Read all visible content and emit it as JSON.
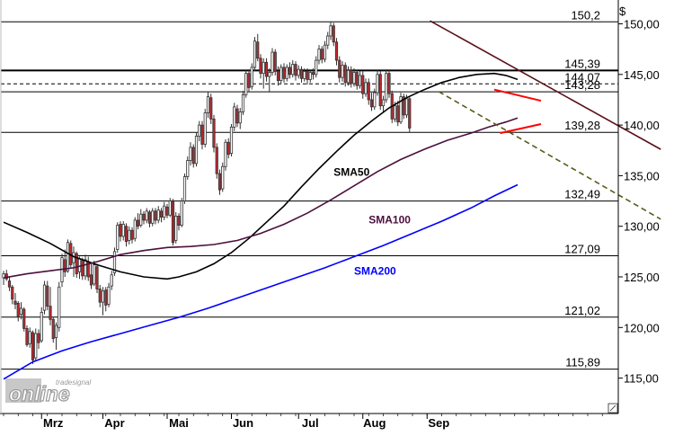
{
  "chart_data": {
    "type": "candlestick",
    "currency_label": "$",
    "y_ticks": [
      {
        "value": 150,
        "label": "150,00"
      },
      {
        "value": 145,
        "label": "145,00"
      },
      {
        "value": 140,
        "label": "140,00"
      },
      {
        "value": 135,
        "label": "135,00"
      },
      {
        "value": 130,
        "label": "130,00"
      },
      {
        "value": 125,
        "label": "125,00"
      },
      {
        "value": 120,
        "label": "120,00"
      },
      {
        "value": 115,
        "label": "115,00"
      }
    ],
    "ylim": [
      111.5,
      152.0
    ],
    "x_months": [
      "Mrz",
      "Apr",
      "Mai",
      "Jun",
      "Jul",
      "Aug",
      "Sep"
    ],
    "horizontal_levels": [
      {
        "value": 150.2,
        "label": "150,2",
        "style": "solid"
      },
      {
        "value": 145.39,
        "label": "145,39",
        "style": "solid-bold"
      },
      {
        "value": 144.07,
        "label": "144,07",
        "style": "dashed"
      },
      {
        "value": 143.28,
        "label": "143,28",
        "style": "solid"
      },
      {
        "value": 139.28,
        "label": "139,28",
        "style": "solid"
      },
      {
        "value": 132.49,
        "label": "132,49",
        "style": "solid"
      },
      {
        "value": 127.09,
        "label": "127,09",
        "style": "solid"
      },
      {
        "value": 121.02,
        "label": "121,02",
        "style": "solid"
      },
      {
        "value": 115.89,
        "label": "115,89",
        "style": "solid"
      }
    ],
    "moving_averages": [
      {
        "name": "SMA50",
        "color": "#000000",
        "points": [
          [
            0,
            130.4
          ],
          [
            8,
            129.4
          ],
          [
            16,
            128.3
          ],
          [
            24,
            127.0
          ],
          [
            32,
            126.2
          ],
          [
            40,
            125.5
          ],
          [
            48,
            125.0
          ],
          [
            56,
            124.8
          ],
          [
            60,
            125.0
          ],
          [
            66,
            125.5
          ],
          [
            72,
            126.3
          ],
          [
            78,
            127.4
          ],
          [
            84,
            128.8
          ],
          [
            90,
            130.4
          ],
          [
            96,
            132.0
          ],
          [
            102,
            133.9
          ],
          [
            108,
            135.7
          ],
          [
            114,
            137.4
          ],
          [
            120,
            139.0
          ],
          [
            126,
            140.4
          ],
          [
            132,
            141.7
          ],
          [
            138,
            142.7
          ],
          [
            144,
            143.5
          ],
          [
            150,
            144.2
          ],
          [
            156,
            144.7
          ],
          [
            162,
            145.0
          ],
          [
            168,
            145.1
          ],
          [
            172,
            144.9
          ],
          [
            176,
            144.5
          ]
        ]
      },
      {
        "name": "SMA100",
        "color": "#4b0f3d",
        "points": [
          [
            0,
            124.9
          ],
          [
            8,
            125.3
          ],
          [
            16,
            125.6
          ],
          [
            24,
            125.9
          ],
          [
            32,
            126.5
          ],
          [
            40,
            127.2
          ],
          [
            48,
            127.6
          ],
          [
            56,
            127.9
          ],
          [
            64,
            128.0
          ],
          [
            72,
            128.2
          ],
          [
            80,
            128.6
          ],
          [
            88,
            129.3
          ],
          [
            96,
            130.2
          ],
          [
            104,
            131.3
          ],
          [
            112,
            132.6
          ],
          [
            120,
            134.0
          ],
          [
            128,
            135.4
          ],
          [
            136,
            136.6
          ],
          [
            144,
            137.6
          ],
          [
            152,
            138.5
          ],
          [
            160,
            139.2
          ],
          [
            166,
            139.8
          ],
          [
            172,
            140.3
          ],
          [
            176,
            140.7
          ]
        ]
      },
      {
        "name": "SMA200",
        "color": "#0000ff",
        "points": [
          [
            0,
            114.9
          ],
          [
            10,
            116.6
          ],
          [
            20,
            117.7
          ],
          [
            30,
            118.6
          ],
          [
            40,
            119.4
          ],
          [
            50,
            120.2
          ],
          [
            60,
            121.0
          ],
          [
            70,
            121.9
          ],
          [
            80,
            122.9
          ],
          [
            90,
            123.9
          ],
          [
            100,
            124.9
          ],
          [
            110,
            125.9
          ],
          [
            120,
            127.0
          ],
          [
            130,
            128.1
          ],
          [
            140,
            129.3
          ],
          [
            150,
            130.5
          ],
          [
            160,
            131.8
          ],
          [
            168,
            133.0
          ],
          [
            176,
            134.1
          ]
        ]
      }
    ],
    "trendlines": [
      {
        "kind": "downtrend-solid",
        "color": "#5a1018",
        "from": [
          146,
          150.3
        ],
        "to": [
          225,
          137.6
        ]
      },
      {
        "kind": "downtrend-dashed",
        "color": "#5a5a1a",
        "from": [
          149,
          143.3
        ],
        "to": [
          225,
          130.7
        ]
      },
      {
        "kind": "wedge-upper",
        "color": "#ff0000",
        "from": [
          168,
          143.5
        ],
        "to": [
          184,
          142.4
        ]
      },
      {
        "kind": "wedge-lower",
        "color": "#ff0000",
        "from": [
          170,
          139.2
        ],
        "to": [
          184,
          140.1
        ]
      }
    ],
    "candles": [
      [
        0,
        124.9,
        125.6,
        124.2,
        125.3
      ],
      [
        1,
        125.3,
        125.7,
        124.6,
        124.8
      ],
      [
        2,
        124.6,
        125.0,
        123.6,
        124.0
      ],
      [
        3,
        124.0,
        124.2,
        122.3,
        122.8
      ],
      [
        4,
        122.6,
        123.4,
        121.8,
        122.3
      ],
      [
        5,
        122.4,
        122.6,
        120.6,
        121.1
      ],
      [
        6,
        121.3,
        122.5,
        120.8,
        121.9
      ],
      [
        7,
        121.8,
        122.0,
        119.6,
        119.9
      ],
      [
        8,
        119.9,
        120.2,
        118.1,
        118.3
      ],
      [
        9,
        118.4,
        120.0,
        118.0,
        119.6
      ],
      [
        10,
        119.5,
        119.7,
        116.4,
        116.8
      ],
      [
        11,
        117.0,
        119.9,
        116.7,
        119.4
      ],
      [
        12,
        119.4,
        119.8,
        117.9,
        118.5
      ],
      [
        13,
        118.7,
        122.0,
        118.5,
        121.5
      ],
      [
        14,
        121.7,
        124.6,
        121.3,
        124.2
      ],
      [
        15,
        124.1,
        124.6,
        121.7,
        122.1
      ],
      [
        16,
        122.1,
        124.0,
        120.2,
        120.8
      ],
      [
        17,
        120.8,
        121.0,
        118.5,
        118.9
      ],
      [
        18,
        119.0,
        120.5,
        117.8,
        120.2
      ],
      [
        19,
        120.0,
        124.5,
        119.6,
        124.0
      ],
      [
        20,
        124.5,
        127.3,
        124.0,
        126.9
      ],
      [
        21,
        126.7,
        127.7,
        125.0,
        125.5
      ],
      [
        22,
        125.6,
        128.7,
        125.4,
        128.4
      ],
      [
        23,
        128.3,
        128.6,
        125.9,
        126.2
      ],
      [
        24,
        126.4,
        128.0,
        125.0,
        127.4
      ],
      [
        25,
        127.3,
        127.5,
        124.9,
        125.3
      ],
      [
        26,
        125.5,
        127.0,
        124.8,
        126.8
      ],
      [
        27,
        126.6,
        126.9,
        124.7,
        125.1
      ],
      [
        28,
        125.1,
        127.2,
        124.7,
        126.7
      ],
      [
        29,
        126.5,
        127.0,
        124.6,
        125.0
      ],
      [
        30,
        125.2,
        126.3,
        123.8,
        124.2
      ],
      [
        31,
        124.3,
        126.6,
        124.1,
        126.2
      ],
      [
        32,
        126.0,
        126.3,
        123.4,
        123.8
      ],
      [
        33,
        123.8,
        124.2,
        122.0,
        122.5
      ],
      [
        34,
        122.5,
        124.0,
        121.2,
        123.6
      ],
      [
        35,
        123.7,
        124.0,
        121.6,
        122.2
      ],
      [
        36,
        122.3,
        124.4,
        122.0,
        124.0
      ],
      [
        37,
        124.1,
        125.6,
        123.7,
        125.2
      ],
      [
        38,
        125.4,
        127.9,
        125.1,
        127.5
      ],
      [
        39,
        127.7,
        130.4,
        127.4,
        130.1
      ],
      [
        40,
        130.2,
        130.5,
        128.5,
        129.0
      ],
      [
        41,
        129.0,
        130.5,
        128.6,
        130.2
      ],
      [
        42,
        130.0,
        130.3,
        128.0,
        128.5
      ],
      [
        43,
        128.6,
        130.0,
        128.2,
        129.6
      ],
      [
        44,
        129.6,
        129.9,
        128.3,
        128.7
      ],
      [
        45,
        128.8,
        130.9,
        128.5,
        130.6
      ],
      [
        46,
        130.6,
        131.3,
        129.7,
        130.0
      ],
      [
        47,
        130.1,
        131.7,
        129.9,
        131.2
      ],
      [
        48,
        131.2,
        131.5,
        130.2,
        130.6
      ],
      [
        49,
        130.6,
        131.8,
        130.3,
        131.5
      ],
      [
        50,
        131.4,
        131.6,
        129.9,
        130.3
      ],
      [
        51,
        130.3,
        131.8,
        130.0,
        131.5
      ],
      [
        52,
        131.5,
        131.8,
        130.2,
        130.6
      ],
      [
        53,
        130.6,
        132.0,
        130.3,
        131.6
      ],
      [
        54,
        131.5,
        131.8,
        130.4,
        130.9
      ],
      [
        55,
        130.9,
        132.4,
        130.6,
        132.0
      ],
      [
        56,
        131.9,
        132.2,
        130.8,
        131.1
      ],
      [
        57,
        131.1,
        132.8,
        130.9,
        132.5
      ],
      [
        58,
        132.4,
        132.7,
        128.1,
        128.4
      ],
      [
        59,
        128.6,
        131.4,
        128.3,
        131.0
      ],
      [
        60,
        131.0,
        131.3,
        129.6,
        130.1
      ],
      [
        61,
        130.1,
        132.8,
        129.9,
        132.5
      ],
      [
        62,
        132.5,
        135.2,
        132.2,
        134.9
      ],
      [
        63,
        134.9,
        136.9,
        134.6,
        136.5
      ],
      [
        64,
        136.5,
        138.3,
        136.0,
        137.8
      ],
      [
        65,
        137.8,
        138.1,
        135.8,
        136.2
      ],
      [
        66,
        136.2,
        139.3,
        135.9,
        138.9
      ],
      [
        67,
        138.9,
        140.4,
        138.4,
        140.0
      ],
      [
        68,
        140.0,
        140.4,
        137.6,
        138.1
      ],
      [
        69,
        138.1,
        141.6,
        137.8,
        141.2
      ],
      [
        70,
        141.2,
        143.3,
        140.7,
        142.8
      ],
      [
        71,
        142.7,
        143.1,
        140.1,
        140.6
      ],
      [
        72,
        140.6,
        141.0,
        137.3,
        137.8
      ],
      [
        73,
        137.8,
        138.2,
        134.7,
        135.2
      ],
      [
        74,
        135.2,
        135.6,
        133.1,
        133.6
      ],
      [
        75,
        133.7,
        136.3,
        133.4,
        135.9
      ],
      [
        76,
        135.9,
        138.6,
        135.5,
        138.3
      ],
      [
        77,
        138.3,
        138.7,
        136.7,
        137.1
      ],
      [
        78,
        137.2,
        140.1,
        136.9,
        139.8
      ],
      [
        79,
        139.8,
        142.2,
        139.4,
        141.8
      ],
      [
        80,
        141.6,
        142.0,
        139.8,
        140.2
      ],
      [
        81,
        140.2,
        141.7,
        139.6,
        141.3
      ],
      [
        82,
        141.3,
        143.4,
        141.0,
        143.0
      ],
      [
        83,
        143.0,
        145.4,
        142.7,
        145.1
      ],
      [
        84,
        145.1,
        145.5,
        143.3,
        143.7
      ],
      [
        85,
        143.8,
        146.1,
        143.5,
        145.7
      ],
      [
        86,
        145.7,
        148.7,
        145.3,
        148.3
      ],
      [
        87,
        148.2,
        149.0,
        146.3,
        146.6
      ],
      [
        88,
        146.6,
        147.0,
        144.6,
        145.1
      ],
      [
        89,
        145.1,
        146.6,
        143.6,
        146.2
      ],
      [
        90,
        146.2,
        146.6,
        144.3,
        144.8
      ],
      [
        91,
        144.8,
        145.6,
        143.3,
        145.2
      ],
      [
        92,
        145.2,
        147.6,
        144.9,
        147.2
      ],
      [
        93,
        147.2,
        147.5,
        144.9,
        145.3
      ],
      [
        94,
        145.3,
        145.8,
        143.9,
        144.4
      ],
      [
        95,
        144.4,
        146.0,
        144.1,
        145.7
      ],
      [
        96,
        145.7,
        146.1,
        144.2,
        144.6
      ],
      [
        97,
        144.6,
        146.0,
        144.3,
        145.7
      ],
      [
        98,
        145.7,
        146.2,
        144.6,
        145.0
      ],
      [
        99,
        145.0,
        146.4,
        144.7,
        146.0
      ],
      [
        100,
        146.0,
        146.3,
        144.4,
        144.9
      ],
      [
        101,
        144.9,
        145.9,
        144.6,
        145.5
      ],
      [
        102,
        145.5,
        145.8,
        144.2,
        144.6
      ],
      [
        103,
        144.6,
        145.6,
        144.3,
        145.3
      ],
      [
        104,
        145.3,
        145.6,
        144.0,
        144.5
      ],
      [
        105,
        144.5,
        145.5,
        144.2,
        145.2
      ],
      [
        106,
        145.2,
        145.6,
        144.5,
        145.0
      ],
      [
        107,
        145.0,
        146.8,
        144.7,
        146.4
      ],
      [
        108,
        146.4,
        147.9,
        146.0,
        147.5
      ],
      [
        109,
        147.5,
        147.8,
        146.1,
        146.5
      ],
      [
        110,
        146.5,
        148.3,
        146.2,
        147.9
      ],
      [
        111,
        147.9,
        149.2,
        147.5,
        148.8
      ],
      [
        112,
        148.8,
        150.2,
        148.4,
        149.8
      ],
      [
        113,
        149.8,
        150.1,
        147.8,
        148.2
      ],
      [
        114,
        148.2,
        148.6,
        145.9,
        146.4
      ],
      [
        115,
        146.4,
        146.8,
        144.2,
        144.7
      ],
      [
        116,
        144.7,
        146.3,
        144.3,
        145.9
      ],
      [
        117,
        145.9,
        146.2,
        143.8,
        144.2
      ],
      [
        118,
        144.2,
        145.8,
        143.9,
        145.4
      ],
      [
        119,
        145.4,
        145.8,
        143.7,
        144.1
      ],
      [
        120,
        144.1,
        145.6,
        143.8,
        145.2
      ],
      [
        121,
        145.2,
        145.5,
        143.5,
        143.9
      ],
      [
        122,
        143.9,
        145.3,
        143.6,
        144.9
      ],
      [
        123,
        144.9,
        145.3,
        142.6,
        143.1
      ],
      [
        124,
        143.1,
        144.6,
        142.8,
        144.2
      ],
      [
        125,
        144.2,
        144.6,
        142.0,
        142.5
      ],
      [
        126,
        142.5,
        143.2,
        141.4,
        141.8
      ],
      [
        127,
        141.8,
        143.6,
        141.5,
        143.2
      ],
      [
        128,
        143.2,
        145.4,
        142.9,
        145.0
      ],
      [
        129,
        145.0,
        145.3,
        141.5,
        141.9
      ],
      [
        130,
        141.9,
        142.9,
        141.2,
        142.5
      ],
      [
        131,
        142.5,
        145.5,
        142.2,
        145.1
      ],
      [
        132,
        145.1,
        145.4,
        142.7,
        143.1
      ],
      [
        133,
        143.1,
        143.4,
        140.2,
        140.6
      ],
      [
        134,
        140.6,
        142.3,
        140.3,
        141.9
      ],
      [
        135,
        141.9,
        142.4,
        139.9,
        140.3
      ],
      [
        136,
        140.3,
        143.2,
        140.1,
        142.8
      ],
      [
        137,
        142.8,
        143.1,
        140.6,
        141.0
      ],
      [
        138,
        141.0,
        143.0,
        140.7,
        142.6
      ],
      [
        139,
        142.6,
        142.8,
        139.3,
        139.7
      ]
    ]
  },
  "labels": {
    "ma_sma50": "SMA50",
    "ma_sma100": "SMA100",
    "ma_sma200": "SMA200"
  },
  "colors": {
    "bull_fill": "#ffffff",
    "bear_fill": "#c0282f",
    "candle_outline": "#333333",
    "grid": "#000000",
    "sma50": "#000000",
    "sma100": "#4b0f3d",
    "sma200": "#0000ff"
  },
  "watermark": {
    "small": "tradesignal",
    "big": "online"
  }
}
